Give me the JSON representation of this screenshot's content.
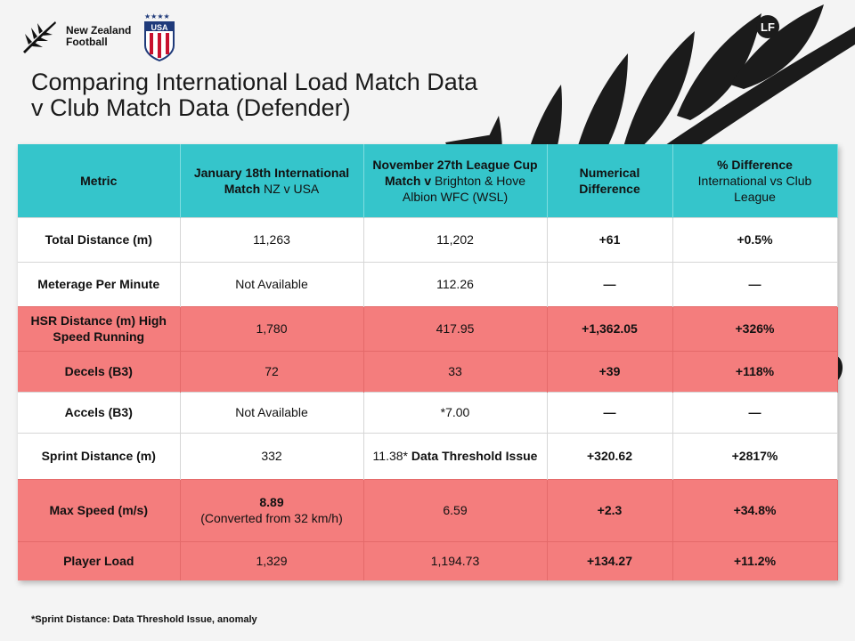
{
  "brand": {
    "nz_line1": "New Zealand",
    "nz_line2": "Football",
    "usa_text": "USA",
    "lf_text": "LF"
  },
  "title": {
    "line1": "Comparing International Load Match Data",
    "line2": "v Club Match Data (Defender)"
  },
  "table": {
    "headers": {
      "metric": "Metric",
      "col1_bold": "January 18th International Match",
      "col1_rest": " NZ v USA",
      "col2_bold": "November 27th League Cup Match v",
      "col2_rest": " Brighton & Hove Albion WFC (WSL)",
      "col3": "Numerical Difference",
      "col4_bold": "% Difference",
      "col4_rest": "International vs Club League"
    },
    "rows": [
      {
        "metric": "Total Distance (m)",
        "intl": "11,263",
        "club": "11,202",
        "diff": "+61",
        "pct": "+0.5%"
      },
      {
        "metric": "Meterage Per Minute",
        "intl": "Not Available",
        "club": "112.26",
        "diff": "—",
        "pct": "—"
      },
      {
        "metric": "HSR Distance (m) High Speed Running",
        "intl": "1,780",
        "club": "417.95",
        "diff": "+1,362.05",
        "pct": "+326%"
      },
      {
        "metric": "Decels (B3)",
        "intl": "72",
        "club": "33",
        "diff": "+39",
        "pct": "+118%"
      },
      {
        "metric": "Accels (B3)",
        "intl": "Not Available",
        "club": "*7.00",
        "diff": "—",
        "pct": "—"
      },
      {
        "metric": "Sprint Distance (m)",
        "intl": "332",
        "club_plain": "11.38*",
        "club_bold": "Data Threshold Issue",
        "diff": "+320.62",
        "pct": "+2817%"
      },
      {
        "metric": "Max Speed (m/s)",
        "intl_bold": "8.89",
        "intl_plain": "(Converted from 32 km/h)",
        "club": "6.59",
        "diff": "+2.3",
        "pct": "+34.8%"
      },
      {
        "metric": "Player Load",
        "intl": "1,329",
        "club": "1,194.73",
        "diff": "+134.27",
        "pct": "+11.2%"
      }
    ]
  },
  "footnote": "*Sprint Distance: Data Threshold Issue, anomaly",
  "colors": {
    "header_bg": "#35c5cb",
    "highlight_row": "#f47d7d",
    "plain_row": "#ffffff",
    "fern": "#1b1b1b"
  }
}
